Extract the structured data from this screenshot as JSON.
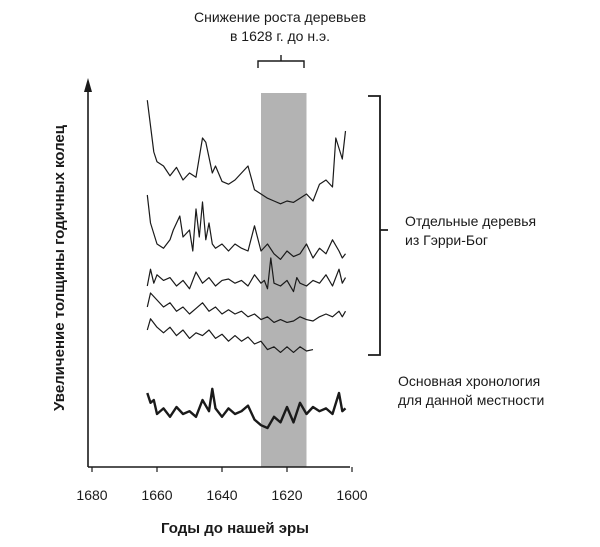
{
  "chart_data": {
    "type": "line",
    "ylabel": "Увеличение толщины годичных колец",
    "xlabel": "Годы до нашей эры",
    "x_ticks": [
      1680,
      1660,
      1640,
      1620,
      1600
    ],
    "xlim": [
      1680,
      1600
    ],
    "shaded_band": {
      "from": 1628,
      "to": 1614,
      "color": "#b3b3b3"
    },
    "annotation_top": [
      "Снижение роста деревьев",
      "в 1628 г. до н.э."
    ],
    "annotation_group": [
      "Отдельные деревья",
      "из Гэрри-Бог"
    ],
    "annotation_master": [
      "Основная хронология",
      "для данной местности"
    ],
    "series": [
      {
        "name": "tree-1",
        "bold": false,
        "x": [
          1663,
          1661,
          1660,
          1658,
          1656,
          1654,
          1652,
          1650,
          1648,
          1646,
          1645,
          1643,
          1642,
          1640,
          1638,
          1636,
          1634,
          1632,
          1630,
          1628,
          1626,
          1624,
          1622,
          1620,
          1618,
          1616,
          1614,
          1612,
          1610,
          1608,
          1606,
          1605,
          1603,
          1602
        ],
        "y": [
          82,
          45,
          38,
          35,
          28,
          34,
          25,
          30,
          27,
          55,
          52,
          30,
          35,
          24,
          22,
          25,
          30,
          35,
          18,
          15,
          12,
          10,
          8,
          10,
          9,
          12,
          15,
          10,
          22,
          25,
          20,
          55,
          40,
          60
        ]
      },
      {
        "name": "tree-2",
        "bold": false,
        "x": [
          1663,
          1662,
          1660,
          1658,
          1656,
          1655,
          1653,
          1652,
          1650,
          1649,
          1648,
          1647,
          1646,
          1645,
          1644,
          1643,
          1642,
          1640,
          1638,
          1636,
          1634,
          1632,
          1630,
          1628,
          1626,
          1624,
          1622,
          1620,
          1618,
          1616,
          1614,
          1612,
          1610,
          1608,
          1606,
          1604,
          1603,
          1602
        ],
        "y": [
          50,
          30,
          15,
          12,
          18,
          25,
          35,
          20,
          25,
          10,
          40,
          20,
          45,
          18,
          30,
          15,
          12,
          15,
          10,
          15,
          12,
          10,
          28,
          10,
          15,
          8,
          4,
          10,
          6,
          8,
          15,
          5,
          12,
          8,
          18,
          10,
          5,
          8
        ]
      },
      {
        "name": "tree-3",
        "bold": false,
        "x": [
          1663,
          1662,
          1661,
          1660,
          1658,
          1656,
          1654,
          1652,
          1650,
          1648,
          1646,
          1644,
          1642,
          1640,
          1638,
          1636,
          1634,
          1632,
          1630,
          1628,
          1627,
          1626,
          1625,
          1624,
          1622,
          1620,
          1618,
          1617,
          1616,
          1614,
          1612,
          1610,
          1608,
          1606,
          1604,
          1603,
          1602
        ],
        "y": [
          10,
          22,
          12,
          18,
          14,
          16,
          10,
          14,
          8,
          20,
          12,
          16,
          10,
          14,
          15,
          12,
          14,
          10,
          18,
          12,
          14,
          8,
          30,
          12,
          10,
          14,
          6,
          16,
          12,
          10,
          14,
          12,
          18,
          10,
          22,
          12,
          16
        ]
      },
      {
        "name": "tree-4",
        "bold": false,
        "x": [
          1663,
          1662,
          1660,
          1658,
          1656,
          1654,
          1652,
          1650,
          1648,
          1646,
          1644,
          1642,
          1640,
          1638,
          1636,
          1634,
          1632,
          1630,
          1628,
          1626,
          1624,
          1622,
          1620,
          1618,
          1616,
          1614,
          1612,
          1610,
          1608,
          1606,
          1604,
          1603,
          1602
        ],
        "y": [
          15,
          25,
          20,
          15,
          18,
          12,
          15,
          10,
          14,
          18,
          12,
          15,
          10,
          13,
          10,
          12,
          8,
          10,
          6,
          8,
          4,
          6,
          4,
          5,
          8,
          6,
          5,
          8,
          10,
          8,
          12,
          8,
          12
        ]
      },
      {
        "name": "tree-5",
        "bold": false,
        "x": [
          1663,
          1662,
          1660,
          1658,
          1656,
          1654,
          1652,
          1650,
          1648,
          1646,
          1644,
          1642,
          1640,
          1638,
          1636,
          1634,
          1632,
          1630,
          1628,
          1626,
          1624,
          1622,
          1620,
          1618,
          1616,
          1614,
          1612
        ],
        "y": [
          20,
          28,
          22,
          18,
          22,
          16,
          20,
          14,
          18,
          16,
          20,
          14,
          17,
          12,
          16,
          12,
          15,
          10,
          12,
          6,
          8,
          4,
          8,
          4,
          8,
          5,
          6
        ]
      },
      {
        "name": "master-chronology",
        "bold": true,
        "x": [
          1663,
          1662,
          1661,
          1660,
          1658,
          1656,
          1654,
          1652,
          1650,
          1648,
          1646,
          1644,
          1643,
          1642,
          1640,
          1638,
          1636,
          1634,
          1632,
          1630,
          1628,
          1626,
          1624,
          1622,
          1620,
          1618,
          1616,
          1614,
          1612,
          1610,
          1608,
          1606,
          1604,
          1603,
          1602
        ],
        "y": [
          25,
          18,
          20,
          10,
          14,
          8,
          15,
          10,
          12,
          8,
          20,
          12,
          28,
          14,
          8,
          14,
          10,
          12,
          16,
          6,
          2,
          0,
          8,
          4,
          15,
          4,
          18,
          10,
          15,
          12,
          14,
          10,
          25,
          12,
          14
        ]
      }
    ]
  }
}
